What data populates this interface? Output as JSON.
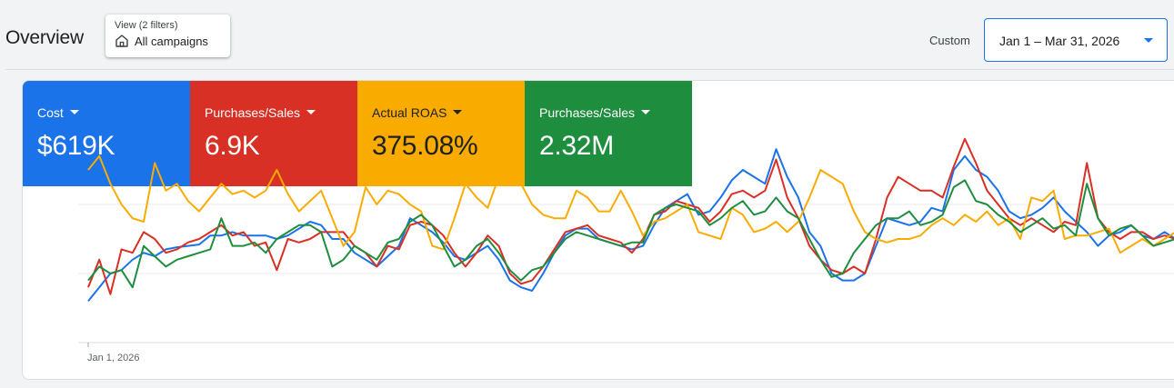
{
  "header": {
    "title": "Overview",
    "view_filter": {
      "label": "View (2 filters)",
      "value": "All campaigns"
    },
    "custom_label": "Custom",
    "date_range": "Jan 1 – Mar 31, 2026"
  },
  "colors": {
    "blue": "#1a73e8",
    "red": "#d93025",
    "yellow": "#f9ab00",
    "green": "#1e8e3e"
  },
  "metrics": [
    {
      "label": "Cost",
      "value": "$619K",
      "color": "#1a73e8"
    },
    {
      "label": "Purchases/Sales",
      "value": "6.9K",
      "color": "#d93025"
    },
    {
      "label": "Actual ROAS",
      "value": "375.08%",
      "color": "#f9ab00"
    },
    {
      "label": "Purchases/Sales",
      "value": "2.32M",
      "color": "#1e8e3e"
    }
  ],
  "chart_data": {
    "type": "line",
    "title": "",
    "x_start_label": "Jan 1, 2026",
    "y_axis_visible": false,
    "series": [
      {
        "name": "Cost",
        "color": "#1a73e8",
        "values": [
          -0.4,
          -0.2,
          0.0,
          0.05,
          0.2,
          0.3,
          0.25,
          0.35,
          0.38,
          0.4,
          0.42,
          0.55,
          0.55,
          0.6,
          0.55,
          0.55,
          0.55,
          0.5,
          0.55,
          0.65,
          0.75,
          0.7,
          0.5,
          0.5,
          0.3,
          0.2,
          0.1,
          0.25,
          0.4,
          0.8,
          0.7,
          0.6,
          0.45,
          0.25,
          0.2,
          0.3,
          0.4,
          0.2,
          -0.1,
          -0.2,
          -0.25,
          0.0,
          0.3,
          0.55,
          0.65,
          0.65,
          0.5,
          0.45,
          0.4,
          0.35,
          0.4,
          0.7,
          0.95,
          1.05,
          1.15,
          0.85,
          0.9,
          1.1,
          1.35,
          1.5,
          1.4,
          1.3,
          1.8,
          1.4,
          1.1,
          0.6,
          0.4,
          0.0,
          -0.1,
          -0.1,
          0.0,
          0.4,
          0.8,
          0.75,
          0.7,
          0.75,
          0.95,
          0.9,
          1.5,
          1.7,
          1.5,
          1.4,
          1.2,
          0.9,
          0.8,
          0.85,
          0.95,
          1.1,
          0.9,
          0.75,
          0.6,
          0.4,
          0.55,
          0.6,
          0.7,
          0.55,
          0.5,
          0.6,
          0.5,
          0.45
        ]
      },
      {
        "name": "Purchases/Sales",
        "color": "#d93025",
        "values": [
          -0.2,
          0.2,
          -0.3,
          0.35,
          0.3,
          0.6,
          0.5,
          0.3,
          0.35,
          0.45,
          0.5,
          0.6,
          0.7,
          0.55,
          0.6,
          0.4,
          0.45,
          0.05,
          0.5,
          0.45,
          0.5,
          0.6,
          0.6,
          0.6,
          0.4,
          0.3,
          0.1,
          0.4,
          0.35,
          0.7,
          0.75,
          0.7,
          0.55,
          0.3,
          0.1,
          0.3,
          0.55,
          0.4,
          0.0,
          -0.15,
          -0.1,
          0.1,
          0.35,
          0.6,
          0.65,
          0.7,
          0.55,
          0.5,
          0.45,
          0.3,
          0.5,
          0.85,
          0.9,
          1.05,
          1.0,
          0.95,
          0.75,
          0.9,
          1.15,
          1.2,
          1.1,
          1.2,
          1.65,
          1.1,
          0.8,
          0.4,
          0.2,
          0.05,
          0.0,
          0.1,
          0.0,
          0.5,
          1.1,
          1.4,
          1.3,
          1.2,
          1.2,
          1.1,
          1.55,
          1.95,
          1.6,
          1.2,
          1.0,
          0.8,
          0.7,
          0.8,
          0.7,
          0.6,
          0.75,
          0.7,
          1.6,
          0.8,
          0.6,
          0.5,
          0.6,
          0.6,
          0.5,
          0.55,
          0.5,
          0.45
        ]
      },
      {
        "name": "Actual ROAS",
        "color": "#f9ab00",
        "values": [
          1.5,
          1.7,
          1.3,
          1.0,
          0.8,
          0.75,
          1.6,
          1.2,
          1.3,
          1.05,
          0.9,
          1.1,
          1.3,
          1.15,
          1.2,
          1.1,
          1.2,
          1.5,
          1.15,
          0.9,
          1.05,
          1.2,
          0.8,
          0.4,
          0.6,
          1.25,
          1.0,
          1.2,
          1.15,
          1.0,
          0.9,
          0.4,
          0.35,
          0.8,
          1.3,
          1.1,
          0.95,
          1.4,
          1.7,
          1.3,
          1.0,
          0.85,
          0.8,
          0.8,
          1.2,
          1.1,
          0.9,
          0.9,
          1.2,
          0.9,
          0.55,
          0.75,
          0.8,
          0.9,
          1.0,
          0.6,
          0.55,
          0.5,
          0.95,
          0.85,
          0.6,
          0.65,
          0.75,
          0.6,
          0.75,
          1.1,
          1.5,
          1.4,
          1.3,
          0.9,
          0.6,
          0.5,
          0.45,
          0.5,
          0.5,
          0.55,
          0.7,
          0.8,
          0.7,
          0.85,
          0.75,
          0.9,
          0.7,
          0.8,
          0.5,
          1.1,
          1.05,
          1.2,
          0.5,
          0.55,
          0.55,
          0.6,
          0.65,
          0.3,
          0.4,
          0.5,
          0.4,
          0.5,
          0.6,
          0.45
        ]
      },
      {
        "name": "Purchases/Sales",
        "color": "#1e8e3e",
        "values": [
          -0.1,
          0.1,
          0.0,
          0.05,
          -0.2,
          0.4,
          0.25,
          0.1,
          0.2,
          0.25,
          0.3,
          0.35,
          0.8,
          0.4,
          0.4,
          0.45,
          0.3,
          0.5,
          0.6,
          0.7,
          0.7,
          0.6,
          0.1,
          0.2,
          0.4,
          0.3,
          0.2,
          0.45,
          0.5,
          0.75,
          0.85,
          0.7,
          0.4,
          0.1,
          0.2,
          0.4,
          0.5,
          0.3,
          0.05,
          -0.1,
          0.05,
          0.1,
          0.3,
          0.5,
          0.6,
          0.55,
          0.5,
          0.45,
          0.4,
          0.45,
          0.45,
          0.85,
          0.95,
          1.0,
          0.95,
          0.9,
          0.7,
          0.8,
          0.95,
          1.05,
          0.85,
          0.9,
          1.1,
          0.9,
          0.8,
          0.5,
          0.2,
          -0.05,
          0.0,
          0.3,
          0.5,
          0.7,
          0.8,
          0.8,
          0.9,
          0.7,
          0.75,
          0.85,
          1.25,
          1.35,
          1.05,
          1.0,
          0.85,
          0.75,
          0.6,
          0.7,
          0.8,
          0.65,
          0.7,
          0.55,
          1.3,
          0.8,
          0.55,
          0.65,
          0.7,
          0.55,
          0.4,
          0.45,
          0.5,
          0.4
        ]
      }
    ]
  }
}
